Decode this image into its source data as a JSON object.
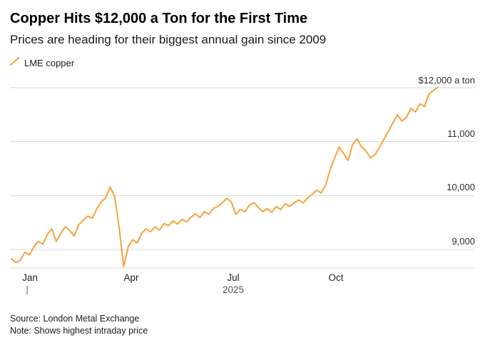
{
  "header": {
    "title": "Copper Hits $12,000 a Ton for the First Time",
    "subtitle": "Prices are heading for their biggest annual gain since 2009",
    "legend": {
      "label": "LME copper"
    }
  },
  "footer": {
    "source": "Source: London Metal Exchange",
    "note": "Note: Shows highest intraday price"
  },
  "colors": {
    "line": "#F7A23B",
    "grid": "#D9D9D9",
    "year_tick": "#8a8a8a"
  },
  "chart_data": {
    "type": "line",
    "title": "Copper Hits $12,000 a Ton for the First Time",
    "subtitle": "Prices are heading for their biggest annual gain since 2009",
    "unit": "USD per ton",
    "year": "2025",
    "x_axis_ticks": [
      "Jan",
      "Apr",
      "Jul",
      "Oct"
    ],
    "y_axis": [
      {
        "label": "$12,000 a ton",
        "value": 12000
      },
      {
        "label": "11,000",
        "value": 11000
      },
      {
        "label": "10,000",
        "value": 10000
      },
      {
        "label": "9,000",
        "value": 9000
      }
    ],
    "ylim": [
      8650,
      12350
    ],
    "x_domain": "Jan 2025 - Dec 2025",
    "grid": true,
    "legend_position": "top-left",
    "series": [
      {
        "name": "LME copper",
        "values": [
          8830,
          8760,
          8800,
          8950,
          8900,
          9050,
          9150,
          9100,
          9280,
          9380,
          9150,
          9300,
          9420,
          9350,
          9250,
          9460,
          9540,
          9620,
          9580,
          9750,
          9880,
          9960,
          10160,
          9980,
          9400,
          8680,
          9050,
          9180,
          9120,
          9300,
          9380,
          9330,
          9420,
          9360,
          9480,
          9440,
          9530,
          9470,
          9560,
          9510,
          9600,
          9660,
          9590,
          9700,
          9650,
          9760,
          9800,
          9870,
          9950,
          9880,
          9650,
          9740,
          9700,
          9820,
          9870,
          9780,
          9700,
          9760,
          9690,
          9800,
          9740,
          9850,
          9800,
          9870,
          9920,
          9860,
          9960,
          10020,
          10100,
          10050,
          10200,
          10480,
          10700,
          10900,
          10780,
          10650,
          10950,
          11050,
          10900,
          10820,
          10700,
          10760,
          10900,
          11050,
          11200,
          11350,
          11500,
          11380,
          11450,
          11620,
          11550,
          11700,
          11650,
          11880,
          11950,
          12005
        ]
      }
    ]
  }
}
